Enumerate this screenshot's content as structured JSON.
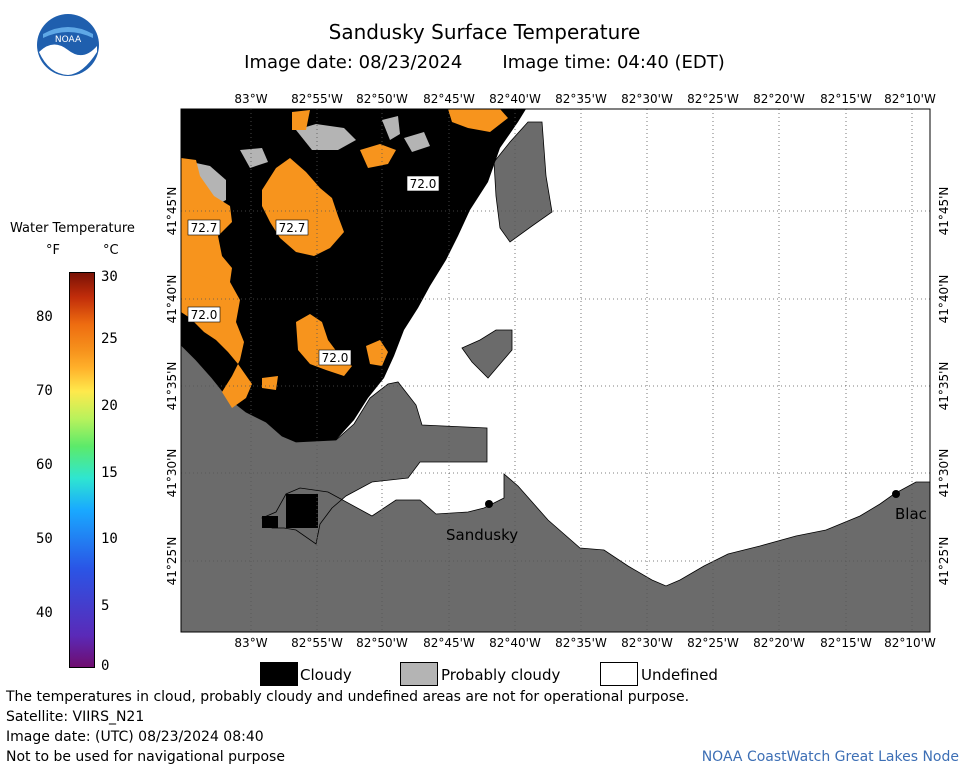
{
  "title": "Sandusky Surface Temperature",
  "image_date_label": "Image date: 08/23/2024",
  "image_time_label": "Image time: 04:40 (EDT)",
  "logo_text": "NOAA",
  "colorbar": {
    "title": "Water Temperature",
    "unit_f": "°F",
    "unit_c": "°C",
    "fahrenheit_ticks": [
      "80",
      "70",
      "60",
      "50",
      "40"
    ],
    "celsius_ticks": [
      "30",
      "25",
      "20",
      "15",
      "10",
      "5",
      "0"
    ]
  },
  "map": {
    "longitude_labels": [
      "83°W",
      "82°55'W",
      "82°50'W",
      "82°45'W",
      "82°40'W",
      "82°35'W",
      "82°30'W",
      "82°25'W",
      "82°20'W",
      "82°15'W",
      "82°10'W"
    ],
    "latitude_labels": [
      "41°45'N",
      "41°40'N",
      "41°35'N",
      "41°30'N",
      "41°25'N"
    ],
    "temperature_labels": [
      "72.0",
      "72.7",
      "72.7",
      "72.0",
      "72.0"
    ],
    "place_labels": [
      "Sandusky",
      "Blac"
    ],
    "colors": {
      "land": "#6b6b6b",
      "cloud": "#000000",
      "probably_cloudy": "#b4b4b4",
      "water_72F": "#f7941d",
      "undefined": "#ffffff"
    }
  },
  "legend": {
    "cloudy": "Cloudy",
    "probably_cloudy": "Probably cloudy",
    "undefined": "Undefined"
  },
  "footer": {
    "disclaimer": "The temperatures in cloud, probably cloudy and undefined areas are not for operational purpose.",
    "satellite": "Satellite: VIIRS_N21",
    "utc_date": "Image date: (UTC) 08/23/2024  08:40",
    "nav_warning": "Not to be used for navigational purpose",
    "credit": "NOAA CoastWatch Great Lakes Node"
  }
}
